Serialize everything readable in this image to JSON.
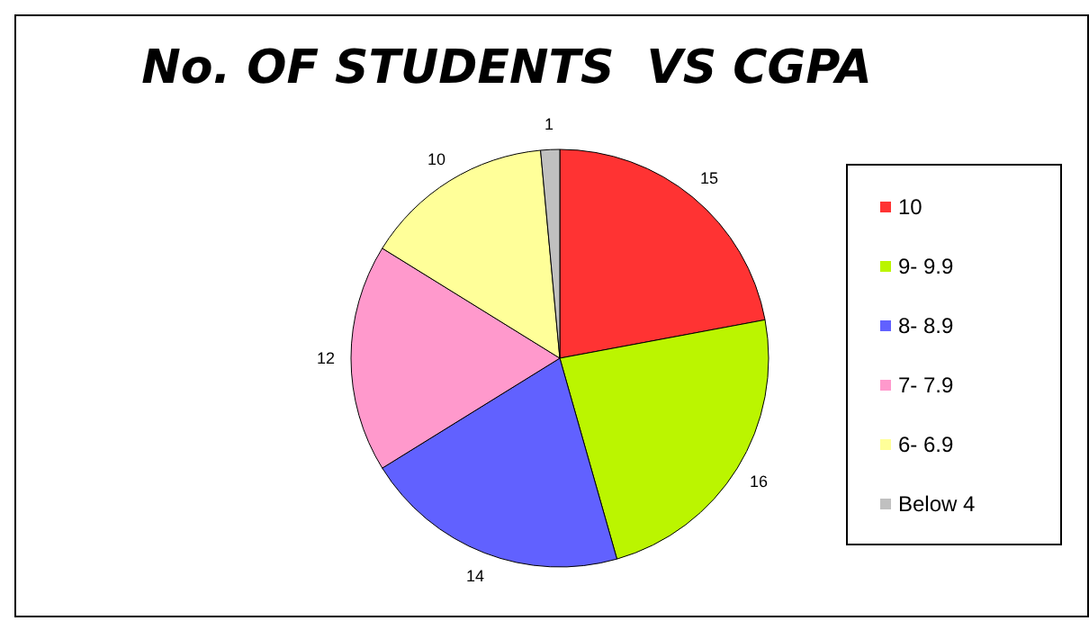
{
  "chart_data": {
    "type": "pie",
    "title": "No. OF STUDENTS  VS CGPA",
    "categories": [
      "10",
      "9- 9.9",
      "8- 8.9",
      "7- 7.9",
      "6- 6.9",
      "Below 4"
    ],
    "values": [
      15,
      16,
      14,
      12,
      10,
      1
    ],
    "colors": [
      "#ff3333",
      "#bbf500",
      "#6161ff",
      "#ff99cc",
      "#ffff99",
      "#c0c0c0"
    ],
    "data_labels": true,
    "legend": "right"
  }
}
